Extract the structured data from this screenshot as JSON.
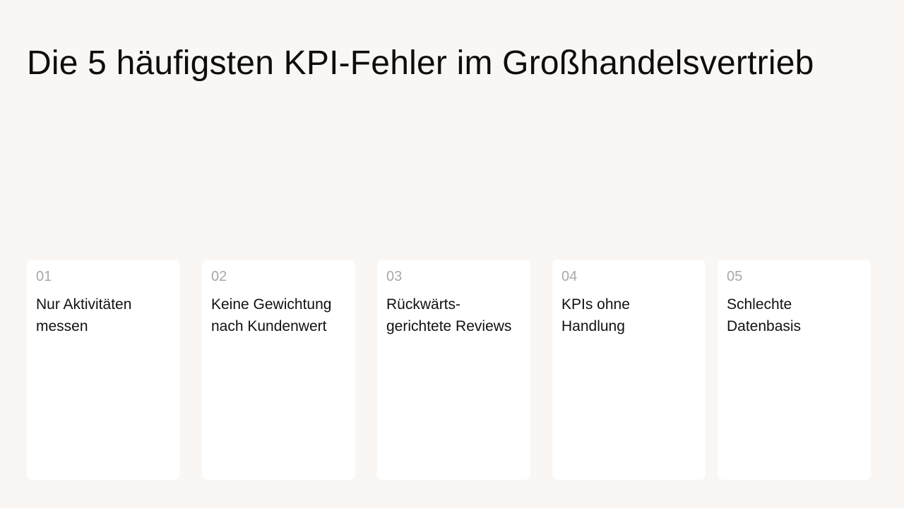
{
  "slide": {
    "title": "Die 5 häufigsten KPI-Fehler im Großhandelsvertrieb",
    "cards": [
      {
        "number": "01",
        "text_line1": "Nur Aktivitäten",
        "text_line2": "messen"
      },
      {
        "number": "02",
        "text_line1": "Keine Gewichtung",
        "text_line2": "nach Kundenwert"
      },
      {
        "number": "03",
        "text_line1": "Rückwärts-",
        "text_line2": "gerichtete Reviews"
      },
      {
        "number": "04",
        "text_line1": "KPIs ohne",
        "text_line2": "Handlung"
      },
      {
        "number": "05",
        "text_line1": "Schlechte",
        "text_line2": "Datenbasis"
      }
    ]
  }
}
